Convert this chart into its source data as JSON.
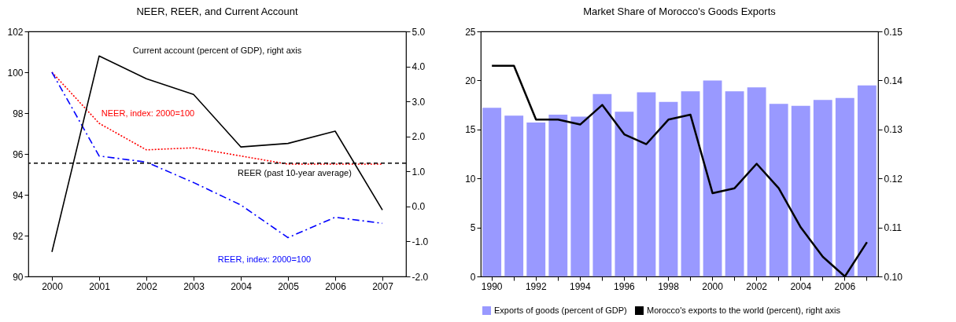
{
  "chart_data": [
    {
      "type": "line",
      "title": "NEER, REER, and Current Account",
      "categories": [
        "2000",
        "2001",
        "2002",
        "2003",
        "2004",
        "2005",
        "2006",
        "2007"
      ],
      "series": [
        {
          "name": "NEER, index: 2000=100",
          "color": "#ff0000",
          "line_style": "dotted",
          "values": [
            100,
            97.5,
            96.2,
            96.3,
            95.9,
            95.5,
            95.5,
            95.5
          ]
        },
        {
          "name": "REER, index: 2000=100",
          "color": "#0000ff",
          "line_style": "dashed",
          "values": [
            100,
            95.9,
            95.6,
            94.6,
            93.5,
            91.9,
            92.9,
            92.6
          ]
        },
        {
          "name": "Current account (percent of GDP), right axis",
          "color": "#000000",
          "line_style": "solid",
          "axis": "y2",
          "values": [
            -1.3,
            4.3,
            3.65,
            3.2,
            1.7,
            1.8,
            2.15,
            -0.1
          ]
        }
      ],
      "ylim": [
        90,
        102
      ],
      "yticks": [
        90,
        92,
        94,
        96,
        98,
        100,
        102
      ],
      "y2lim": [
        -2,
        5
      ],
      "y2ticks": [
        {
          "value": -2,
          "label": "-2.0"
        },
        {
          "value": -1,
          "label": "-1.0"
        },
        {
          "value": 0,
          "label": "0.0"
        },
        {
          "value": 1,
          "label": "1.0"
        },
        {
          "value": 2,
          "label": "2.0"
        },
        {
          "value": 3,
          "label": "3.0"
        },
        {
          "value": 4,
          "label": "4.0"
        },
        {
          "value": 5,
          "label": "5.0"
        }
      ],
      "ref_lines": [
        {
          "axis": "y",
          "value": 95.55,
          "label": "REER (past 10-year average)",
          "color": "#000000",
          "line_style": "dashed"
        }
      ],
      "grid": false,
      "legend": false
    },
    {
      "type": "bar",
      "title": "Market Share of Morocco's Goods Exports",
      "categories": [
        "1990",
        null,
        "1992",
        null,
        "1994",
        null,
        "1996",
        null,
        "1998",
        null,
        "2000",
        null,
        "2002",
        null,
        "2004",
        null,
        "2006",
        null
      ],
      "series": [
        {
          "name": "Exports of goods (percent of GDP)",
          "color": "#9999ff",
          "values": [
            17.2,
            16.4,
            15.7,
            16.5,
            16.3,
            18.6,
            16.8,
            18.8,
            17.8,
            18.9,
            20.0,
            18.9,
            19.3,
            17.6,
            17.4,
            18.0,
            18.2,
            19.5
          ]
        },
        {
          "name": "Morocco's exports to the world (percent), right axis",
          "type": "line",
          "axis": "y2",
          "color": "#000000",
          "values": [
            0.143,
            0.143,
            0.132,
            0.132,
            0.131,
            0.135,
            0.129,
            0.127,
            0.132,
            0.133,
            0.117,
            0.118,
            0.123,
            0.118,
            0.11,
            0.104,
            0.1,
            0.107
          ]
        }
      ],
      "ylim": [
        0,
        25
      ],
      "yticks": [
        0,
        5,
        10,
        15,
        20,
        25
      ],
      "y2lim": [
        0.1,
        0.15
      ],
      "y2ticks": [
        {
          "value": 0.1,
          "label": "0.10"
        },
        {
          "value": 0.11,
          "label": "0.11"
        },
        {
          "value": 0.12,
          "label": "0.12"
        },
        {
          "value": 0.13,
          "label": "0.13"
        },
        {
          "value": 0.14,
          "label": "0.14"
        },
        {
          "value": 0.15,
          "label": "0.15"
        }
      ],
      "grid": false,
      "legend": "bottom"
    }
  ]
}
